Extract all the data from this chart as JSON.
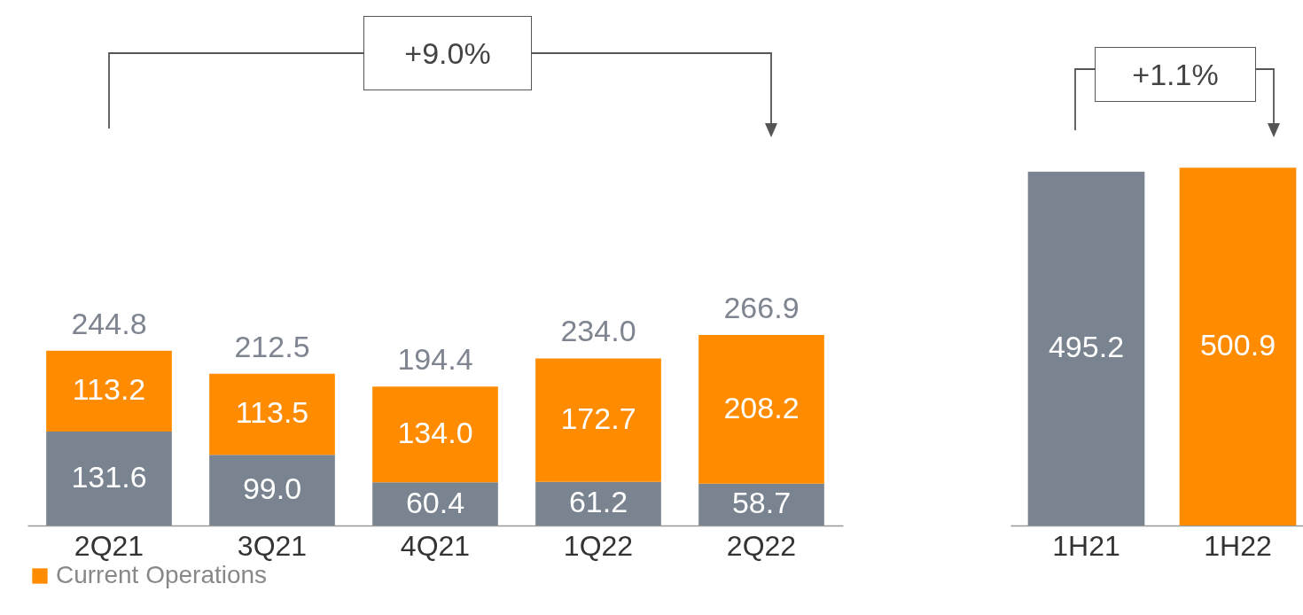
{
  "chart_data": [
    {
      "type": "bar",
      "stacked": true,
      "categories": [
        "2Q21",
        "3Q21",
        "4Q21",
        "1Q22",
        "2Q22"
      ],
      "series": [
        {
          "color": "#7a8490",
          "values": [
            131.6,
            99.0,
            60.4,
            61.2,
            58.7
          ],
          "value_labels": [
            "131.6",
            "99.0",
            "60.4",
            "61.2",
            "58.7"
          ]
        },
        {
          "name": "Current Operations",
          "color": "#ff8c00",
          "values": [
            113.2,
            113.5,
            134.0,
            172.7,
            208.2
          ],
          "value_labels": [
            "113.2",
            "113.5",
            "134.0",
            "172.7",
            "208.2"
          ]
        }
      ],
      "totals": [
        "244.8",
        "212.5",
        "194.4",
        "234.0",
        "266.9"
      ],
      "legend": "bottom",
      "annotations": [
        "+9.0%"
      ]
    },
    {
      "type": "bar",
      "categories": [
        "1H21",
        "1H22"
      ],
      "values": [
        495.2,
        500.9
      ],
      "colors": [
        "#7a8490",
        "#ff8c00"
      ],
      "data_labels": true,
      "annotations": [
        "+1.1%"
      ]
    }
  ]
}
